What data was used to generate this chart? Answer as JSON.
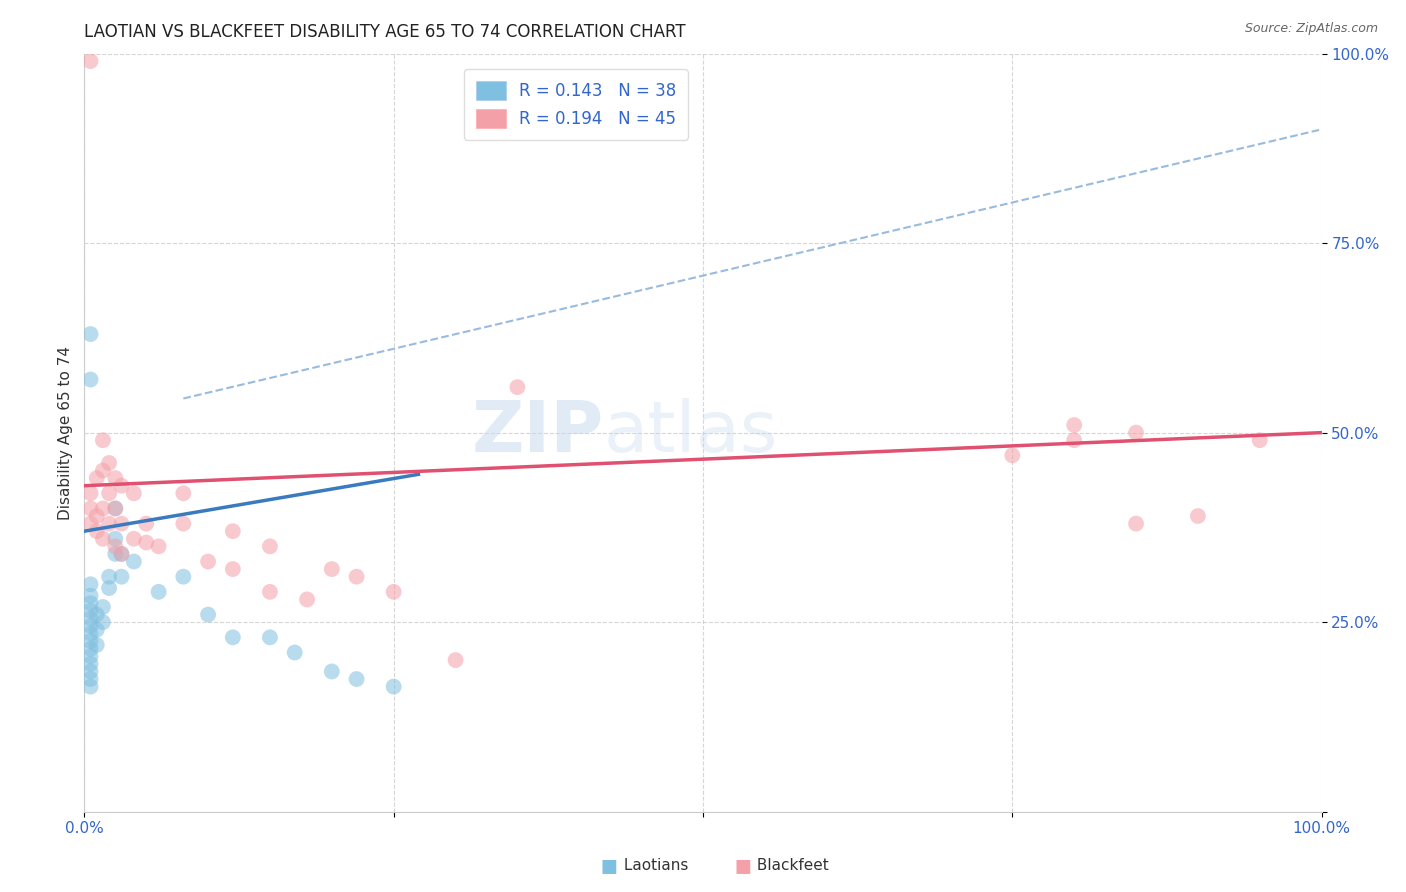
{
  "title": "LAOTIAN VS BLACKFEET DISABILITY AGE 65 TO 74 CORRELATION CHART",
  "source_text": "Source: ZipAtlas.com",
  "ylabel": "Disability Age 65 to 74",
  "xlim": [
    0,
    1
  ],
  "ylim": [
    0,
    1
  ],
  "xticks": [
    0.0,
    0.25,
    0.5,
    0.75,
    1.0
  ],
  "yticks": [
    0.0,
    0.25,
    0.5,
    0.75,
    1.0
  ],
  "xticklabels": [
    "0.0%",
    "",
    "",
    "",
    "100.0%"
  ],
  "yticklabels": [
    "",
    "25.0%",
    "50.0%",
    "75.0%",
    "100.0%"
  ],
  "laotian_R": 0.143,
  "laotian_N": 38,
  "blackfeet_R": 0.194,
  "blackfeet_N": 45,
  "laotian_color": "#7fbfdf",
  "blackfeet_color": "#f4a0a8",
  "laotian_line_color": "#3a7abf",
  "blackfeet_line_color": "#e05070",
  "dashed_line_color": "#99bbdd",
  "background_color": "#ffffff",
  "laotian_points": [
    [
      0.005,
      0.205
    ],
    [
      0.005,
      0.185
    ],
    [
      0.005,
      0.175
    ],
    [
      0.005,
      0.165
    ],
    [
      0.005,
      0.195
    ],
    [
      0.005,
      0.215
    ],
    [
      0.005,
      0.225
    ],
    [
      0.005,
      0.235
    ],
    [
      0.005,
      0.245
    ],
    [
      0.005,
      0.255
    ],
    [
      0.005,
      0.265
    ],
    [
      0.005,
      0.275
    ],
    [
      0.005,
      0.285
    ],
    [
      0.005,
      0.3
    ],
    [
      0.01,
      0.22
    ],
    [
      0.01,
      0.24
    ],
    [
      0.01,
      0.26
    ],
    [
      0.015,
      0.25
    ],
    [
      0.015,
      0.27
    ],
    [
      0.02,
      0.295
    ],
    [
      0.02,
      0.31
    ],
    [
      0.025,
      0.34
    ],
    [
      0.025,
      0.36
    ],
    [
      0.025,
      0.4
    ],
    [
      0.03,
      0.31
    ],
    [
      0.03,
      0.34
    ],
    [
      0.04,
      0.33
    ],
    [
      0.06,
      0.29
    ],
    [
      0.08,
      0.31
    ],
    [
      0.1,
      0.26
    ],
    [
      0.12,
      0.23
    ],
    [
      0.15,
      0.23
    ],
    [
      0.17,
      0.21
    ],
    [
      0.2,
      0.185
    ],
    [
      0.22,
      0.175
    ],
    [
      0.25,
      0.165
    ],
    [
      0.005,
      0.57
    ],
    [
      0.005,
      0.63
    ]
  ],
  "blackfeet_points": [
    [
      0.005,
      0.38
    ],
    [
      0.005,
      0.4
    ],
    [
      0.005,
      0.42
    ],
    [
      0.01,
      0.37
    ],
    [
      0.01,
      0.39
    ],
    [
      0.01,
      0.44
    ],
    [
      0.015,
      0.36
    ],
    [
      0.015,
      0.4
    ],
    [
      0.015,
      0.45
    ],
    [
      0.015,
      0.49
    ],
    [
      0.02,
      0.38
    ],
    [
      0.02,
      0.42
    ],
    [
      0.02,
      0.46
    ],
    [
      0.025,
      0.35
    ],
    [
      0.025,
      0.4
    ],
    [
      0.025,
      0.44
    ],
    [
      0.03,
      0.34
    ],
    [
      0.03,
      0.38
    ],
    [
      0.03,
      0.43
    ],
    [
      0.04,
      0.36
    ],
    [
      0.04,
      0.42
    ],
    [
      0.05,
      0.355
    ],
    [
      0.05,
      0.38
    ],
    [
      0.06,
      0.35
    ],
    [
      0.08,
      0.38
    ],
    [
      0.08,
      0.42
    ],
    [
      0.1,
      0.33
    ],
    [
      0.12,
      0.32
    ],
    [
      0.12,
      0.37
    ],
    [
      0.15,
      0.29
    ],
    [
      0.15,
      0.35
    ],
    [
      0.18,
      0.28
    ],
    [
      0.2,
      0.32
    ],
    [
      0.22,
      0.31
    ],
    [
      0.25,
      0.29
    ],
    [
      0.3,
      0.2
    ],
    [
      0.35,
      0.56
    ],
    [
      0.75,
      0.47
    ],
    [
      0.8,
      0.49
    ],
    [
      0.8,
      0.51
    ],
    [
      0.85,
      0.5
    ],
    [
      0.85,
      0.38
    ],
    [
      0.9,
      0.39
    ],
    [
      0.95,
      0.49
    ],
    [
      0.005,
      0.99
    ]
  ],
  "laotian_line": [
    [
      0.0,
      0.37
    ],
    [
      0.27,
      0.445
    ]
  ],
  "blackfeet_line": [
    [
      0.0,
      0.43
    ],
    [
      1.0,
      0.5
    ]
  ],
  "dashed_line": [
    [
      0.08,
      0.545
    ],
    [
      1.0,
      0.9
    ]
  ],
  "title_fontsize": 12,
  "axis_label_fontsize": 11,
  "tick_fontsize": 11,
  "legend_fontsize": 12,
  "watermark_text": "ZIPatlas",
  "watermark_zip": "ZIP",
  "watermark_atlas": "atlas"
}
